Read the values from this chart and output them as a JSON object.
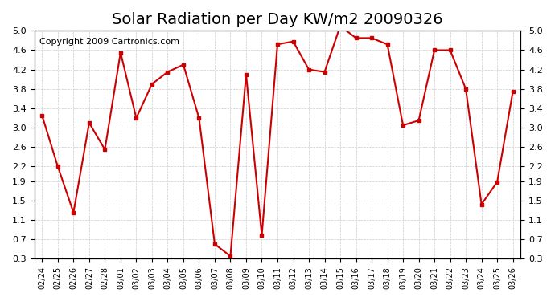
{
  "title": "Solar Radiation per Day KW/m2 20090326",
  "copyright": "Copyright 2009 Cartronics.com",
  "dates": [
    "02/24",
    "02/25",
    "02/26",
    "02/27",
    "02/28",
    "03/01",
    "03/02",
    "03/03",
    "03/04",
    "03/05",
    "03/06",
    "03/07",
    "03/08",
    "03/09",
    "03/10",
    "03/11",
    "03/12",
    "03/13",
    "03/14",
    "03/15",
    "03/16",
    "03/17",
    "03/18",
    "03/19",
    "03/20",
    "03/21",
    "03/22",
    "03/23",
    "03/24",
    "03/25",
    "03/26"
  ],
  "values": [
    3.25,
    2.2,
    1.25,
    3.1,
    2.55,
    4.55,
    3.2,
    3.9,
    4.15,
    4.3,
    3.2,
    0.6,
    0.35,
    4.1,
    0.78,
    4.72,
    4.78,
    4.2,
    4.15,
    5.1,
    4.85,
    4.85,
    4.72,
    3.05,
    3.15,
    4.6,
    4.6,
    3.8,
    1.42,
    1.88,
    3.75
  ],
  "line_color": "#cc0000",
  "marker_size": 3,
  "bg_color": "#ffffff",
  "grid_color": "#cccccc",
  "ylim_min": 0.3,
  "ylim_max": 5.0,
  "yticks": [
    0.3,
    0.7,
    1.1,
    1.5,
    1.9,
    2.2,
    2.6,
    3.0,
    3.4,
    3.8,
    4.2,
    4.6,
    5.0
  ],
  "title_fontsize": 14,
  "copyright_fontsize": 8,
  "tick_fontsize": 7,
  "ytick_fontsize": 8
}
